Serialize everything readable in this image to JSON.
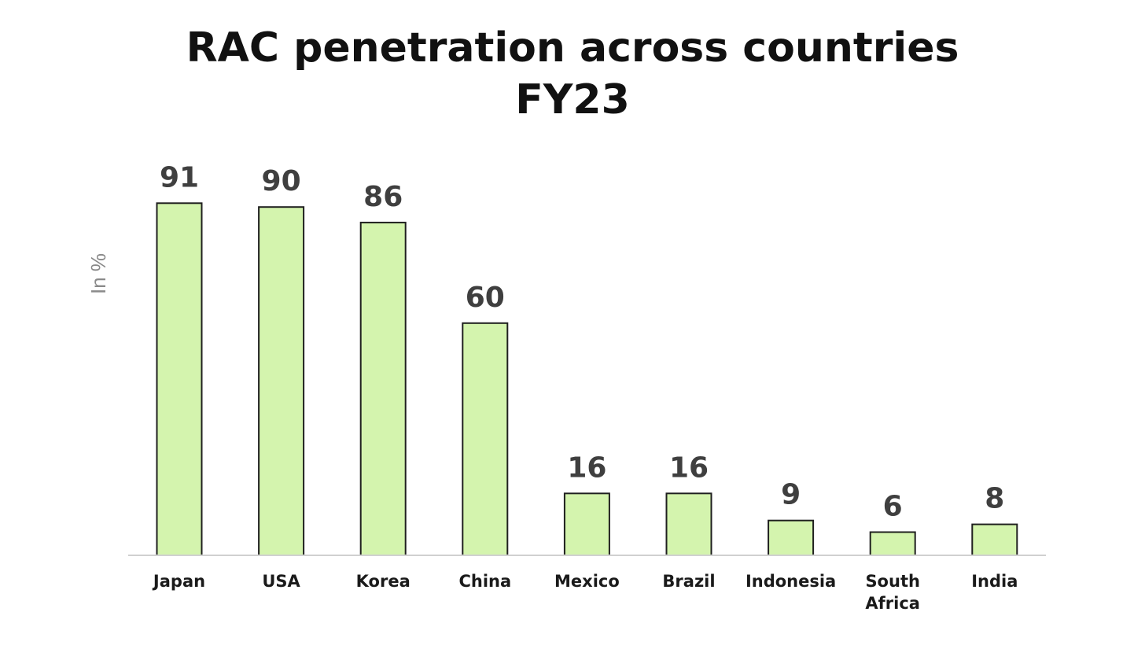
{
  "chart_data": {
    "type": "bar",
    "title": [
      "RAC penetration across countries",
      "FY23"
    ],
    "xlabel": "",
    "ylabel": "In %",
    "ylim": [
      0,
      100
    ],
    "grid": false,
    "categories": [
      [
        "Japan"
      ],
      [
        "USA"
      ],
      [
        "Korea"
      ],
      [
        "China"
      ],
      [
        "Mexico"
      ],
      [
        "Brazil"
      ],
      [
        "Indonesia"
      ],
      [
        "South",
        "Africa"
      ],
      [
        "India"
      ]
    ],
    "values": [
      91,
      90,
      86,
      60,
      16,
      16,
      9,
      6,
      8
    ],
    "value_labels": [
      "91",
      "90",
      "86",
      "60",
      "16",
      "16",
      "9",
      "6",
      "8"
    ],
    "colors": {
      "bar_fill": "#d4f4ae",
      "bar_stroke": "#1f1f1f",
      "value_text": "#3f3f3f",
      "axis_line": "#d0d0d0"
    }
  }
}
